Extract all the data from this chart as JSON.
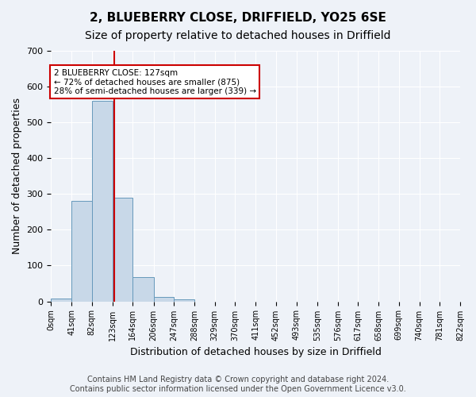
{
  "title1": "2, BLUEBERRY CLOSE, DRIFFIELD, YO25 6SE",
  "title2": "Size of property relative to detached houses in Driffield",
  "xlabel": "Distribution of detached houses by size in Driffield",
  "ylabel": "Number of detached properties",
  "bin_edges": [
    0,
    41,
    82,
    123,
    164,
    206,
    247,
    288,
    329,
    370,
    411,
    452,
    493,
    535,
    576,
    617,
    658,
    699,
    740,
    781,
    822
  ],
  "bar_heights": [
    7,
    280,
    560,
    290,
    68,
    13,
    6,
    0,
    0,
    0,
    0,
    0,
    0,
    0,
    0,
    0,
    0,
    0,
    0,
    0
  ],
  "bar_color": "#c8d8e8",
  "bar_edgecolor": "#6699bb",
  "property_size": 127,
  "vline_color": "#cc0000",
  "annotation_text": "2 BLUEBERRY CLOSE: 127sqm\n← 72% of detached houses are smaller (875)\n28% of semi-detached houses are larger (339) →",
  "annotation_box_edgecolor": "#cc0000",
  "annotation_box_facecolor": "#ffffff",
  "ylim": [
    0,
    700
  ],
  "yticks": [
    0,
    100,
    200,
    300,
    400,
    500,
    600,
    700
  ],
  "tick_labels": [
    "0sqm",
    "41sqm",
    "82sqm",
    "123sqm",
    "164sqm",
    "206sqm",
    "247sqm",
    "288sqm",
    "329sqm",
    "370sqm",
    "411sqm",
    "452sqm",
    "493sqm",
    "535sqm",
    "576sqm",
    "617sqm",
    "658sqm",
    "699sqm",
    "740sqm",
    "781sqm",
    "822sqm"
  ],
  "footer": "Contains HM Land Registry data © Crown copyright and database right 2024.\nContains public sector information licensed under the Open Government Licence v3.0.",
  "bg_color": "#eef2f8",
  "grid_color": "#ffffff",
  "title1_fontsize": 11,
  "title2_fontsize": 10,
  "xlabel_fontsize": 9,
  "ylabel_fontsize": 9,
  "footer_fontsize": 7
}
